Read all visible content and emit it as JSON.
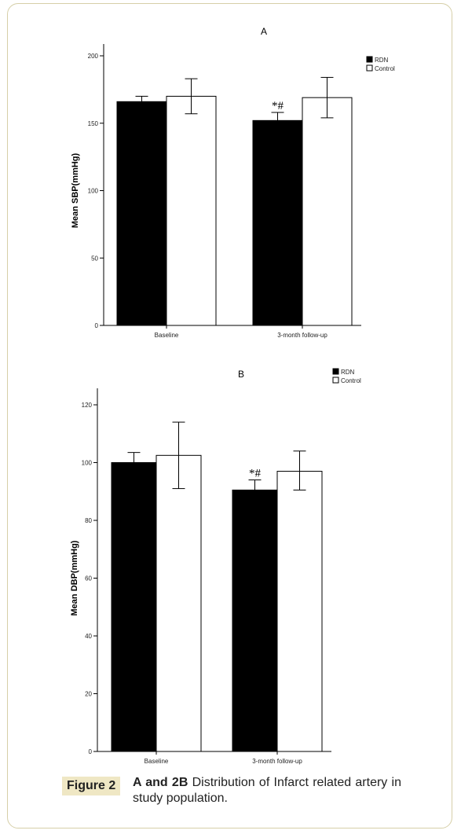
{
  "chart_data": [
    {
      "type": "bar",
      "title": "A",
      "ylabel": "Mean SBP(mmHg)",
      "xlabel": "",
      "categories": [
        "Baseline",
        "3-month follow-up"
      ],
      "ylim": [
        0,
        200
      ],
      "yticks": [
        0,
        50,
        100,
        150,
        200
      ],
      "grid": false,
      "legend_position": "top-right",
      "series": [
        {
          "name": "RDN",
          "color": "#000000",
          "values": [
            166,
            152
          ],
          "err_low": [
            162,
            147
          ],
          "err_high": [
            170,
            158
          ]
        },
        {
          "name": "Control",
          "color": "#ffffff",
          "values": [
            170,
            169
          ],
          "err_low": [
            157,
            154
          ],
          "err_high": [
            183,
            184
          ]
        }
      ],
      "annotations": [
        {
          "text": "*#",
          "category": "3-month follow-up",
          "series": "RDN"
        }
      ]
    },
    {
      "type": "bar",
      "title": "B",
      "ylabel": "Mean DBP(mmHg)",
      "xlabel": "",
      "categories": [
        "Baseline",
        "3-month follow-up"
      ],
      "ylim": [
        0,
        120
      ],
      "yticks": [
        0,
        20,
        40,
        60,
        80,
        100,
        120
      ],
      "grid": false,
      "legend_position": "top-right",
      "series": [
        {
          "name": "RDN",
          "color": "#000000",
          "values": [
            100,
            90.5
          ],
          "err_low": [
            96.5,
            86.5
          ],
          "err_high": [
            103.5,
            94
          ]
        },
        {
          "name": "Control",
          "color": "#ffffff",
          "values": [
            102.5,
            97
          ],
          "err_low": [
            91,
            90.5
          ],
          "err_high": [
            114,
            104
          ]
        }
      ],
      "annotations": [
        {
          "text": "*#",
          "category": "3-month follow-up",
          "series": "RDN"
        }
      ]
    }
  ],
  "caption": {
    "label": "Figure 2",
    "bold_part": "A and 2B",
    "text": " Distribution of Infarct related artery in study population."
  }
}
